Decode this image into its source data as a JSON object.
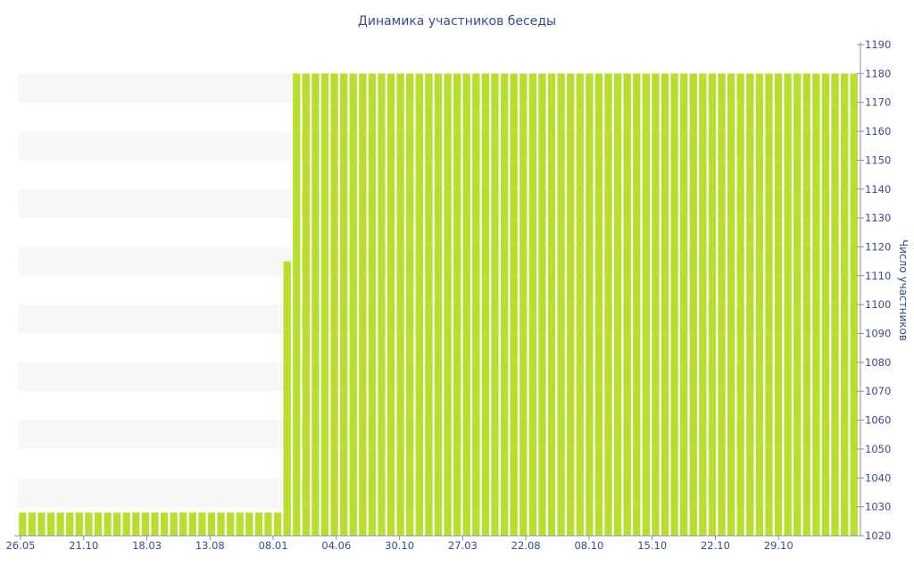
{
  "chart_data": {
    "type": "bar",
    "title": "Динамика участников беседы",
    "xlabel": "",
    "ylabel": "Число участников",
    "ylim": [
      1020,
      1190
    ],
    "yticks": [
      1020,
      1030,
      1040,
      1050,
      1060,
      1070,
      1080,
      1090,
      1100,
      1110,
      1120,
      1130,
      1140,
      1150,
      1160,
      1170,
      1180,
      1190
    ],
    "y_axis_position": "right",
    "x_tick_labels": [
      "26.05",
      "21.10",
      "18.03",
      "13.08",
      "08.01",
      "04.06",
      "30.10",
      "27.03",
      "22.08",
      "08.10",
      "15.10",
      "22.10",
      "29.10"
    ],
    "grid": "horizontal bands",
    "legend": "none",
    "bar_color": "#b8df2e",
    "band_color": "#f7f7f7",
    "values": [
      1028,
      1028,
      1028,
      1028,
      1028,
      1028,
      1028,
      1028,
      1028,
      1028,
      1028,
      1028,
      1028,
      1028,
      1028,
      1028,
      1028,
      1028,
      1028,
      1028,
      1028,
      1028,
      1028,
      1028,
      1028,
      1028,
      1028,
      1028,
      1115,
      1180,
      1180,
      1180,
      1180,
      1180,
      1180,
      1180,
      1180,
      1180,
      1180,
      1180,
      1180,
      1180,
      1180,
      1180,
      1180,
      1180,
      1180,
      1180,
      1180,
      1180,
      1180,
      1180,
      1180,
      1180,
      1180,
      1180,
      1180,
      1180,
      1180,
      1180,
      1180,
      1180,
      1180,
      1180,
      1180,
      1180,
      1180,
      1180,
      1180,
      1180,
      1180,
      1180,
      1180,
      1180,
      1180,
      1180,
      1180,
      1180,
      1180,
      1180,
      1180,
      1180,
      1180,
      1180,
      1180,
      1180,
      1180,
      1180,
      1180
    ]
  }
}
